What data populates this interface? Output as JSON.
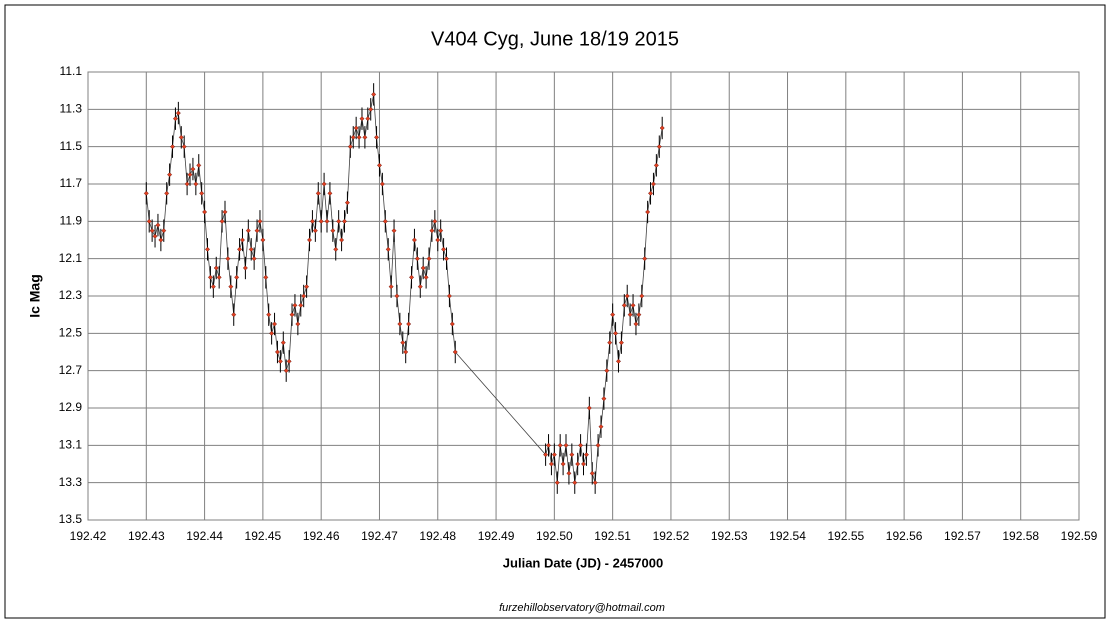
{
  "chart_data": {
    "type": "scatter",
    "title": "V404 Cyg, June 18/19 2015",
    "x_label": "Julian Date (JD) - 2457000",
    "y_label": "Ic Mag",
    "annotation": "furzehillobservatory@hotmail.com",
    "xlim": [
      192.42,
      192.59
    ],
    "xticks": [
      192.42,
      192.43,
      192.44,
      192.45,
      192.46,
      192.47,
      192.48,
      192.49,
      {
        "value": 192.5,
        "label": "192.50"
      },
      192.51,
      192.52,
      192.53,
      192.54,
      192.55,
      192.56,
      192.57,
      192.58,
      192.59
    ],
    "ylim": [
      11.1,
      13.5
    ],
    "yticks": [
      11.1,
      11.3,
      11.5,
      11.7,
      11.9,
      12.1,
      12.3,
      12.5,
      12.7,
      12.9,
      13.1,
      13.3,
      13.5
    ],
    "y_inverted": true,
    "grid": true,
    "x": [
      192.43,
      192.4305,
      192.431,
      192.4315,
      192.432,
      192.4325,
      192.433,
      192.4335,
      192.434,
      192.4345,
      192.435,
      192.4355,
      192.436,
      192.4365,
      192.437,
      192.4375,
      192.438,
      192.4385,
      192.439,
      192.4395,
      192.44,
      192.4405,
      192.441,
      192.4415,
      192.442,
      192.4425,
      192.443,
      192.4435,
      192.444,
      192.4445,
      192.445,
      192.4455,
      192.446,
      192.4465,
      192.447,
      192.4475,
      192.448,
      192.4485,
      192.449,
      192.4495,
      192.45,
      192.4505,
      192.451,
      192.4515,
      192.452,
      192.4525,
      192.453,
      192.4535,
      192.454,
      192.4545,
      192.455,
      192.4555,
      192.456,
      192.4565,
      192.457,
      192.4575,
      192.458,
      192.4585,
      192.459,
      192.4595,
      192.46,
      192.4605,
      192.461,
      192.4615,
      192.462,
      192.4625,
      192.463,
      192.4635,
      192.464,
      192.4645,
      192.465,
      192.4655,
      192.466,
      192.4665,
      192.467,
      192.4675,
      192.468,
      192.4685,
      192.469,
      192.4695,
      192.47,
      192.4705,
      192.471,
      192.4715,
      192.472,
      192.4725,
      192.473,
      192.4735,
      192.474,
      192.4745,
      192.475,
      192.4755,
      192.476,
      192.4765,
      192.477,
      192.4775,
      192.478,
      192.4785,
      192.479,
      192.4795,
      192.48,
      192.4805,
      192.481,
      192.4815,
      192.482,
      192.4825,
      192.483,
      192.4985,
      192.499,
      192.4995,
      192.5,
      192.5005,
      192.501,
      192.5015,
      192.502,
      192.5025,
      192.503,
      192.5035,
      192.504,
      192.5045,
      192.505,
      192.5055,
      192.506,
      192.5065,
      192.507,
      192.5075,
      192.508,
      192.5085,
      192.509,
      192.5095,
      192.51,
      192.5105,
      192.511,
      192.5115,
      192.512,
      192.5125,
      192.513,
      192.5135,
      192.514,
      192.5145,
      192.515,
      192.5155,
      192.516,
      192.5165,
      192.517,
      192.5175,
      192.518,
      192.5185
    ],
    "series": [
      {
        "color": "#e04020",
        "line_color": "#404040",
        "error": 0.06,
        "values": [
          11.75,
          11.9,
          11.95,
          11.98,
          11.92,
          12.0,
          11.95,
          11.75,
          11.65,
          11.5,
          11.35,
          11.32,
          11.45,
          11.5,
          11.7,
          11.65,
          11.62,
          11.7,
          11.6,
          11.75,
          11.85,
          12.05,
          12.2,
          12.25,
          12.15,
          12.2,
          11.9,
          11.85,
          12.1,
          12.25,
          12.4,
          12.2,
          12.05,
          12.0,
          12.15,
          11.95,
          12.05,
          12.1,
          11.95,
          11.9,
          12.0,
          12.2,
          12.4,
          12.5,
          12.45,
          12.6,
          12.65,
          12.55,
          12.7,
          12.65,
          12.4,
          12.35,
          12.45,
          12.35,
          12.3,
          12.25,
          12.0,
          11.9,
          11.95,
          11.75,
          11.9,
          11.7,
          11.9,
          11.75,
          11.95,
          12.05,
          11.9,
          12.0,
          11.9,
          11.8,
          11.5,
          11.45,
          11.4,
          11.45,
          11.35,
          11.45,
          11.35,
          11.3,
          11.22,
          11.45,
          11.6,
          11.7,
          11.9,
          12.05,
          12.25,
          11.95,
          12.3,
          12.45,
          12.55,
          12.6,
          12.45,
          12.2,
          12.0,
          12.1,
          12.25,
          12.15,
          12.2,
          12.1,
          11.95,
          11.9,
          12.0,
          11.95,
          12.05,
          12.1,
          12.3,
          12.45,
          12.6,
          13.15,
          13.1,
          13.2,
          13.15,
          13.3,
          13.1,
          13.2,
          13.1,
          13.25,
          13.15,
          13.3,
          13.2,
          13.1,
          13.2,
          13.15,
          12.9,
          13.25,
          13.3,
          13.1,
          13.0,
          12.85,
          12.7,
          12.55,
          12.4,
          12.5,
          12.65,
          12.55,
          12.35,
          12.3,
          12.4,
          12.35,
          12.45,
          12.4,
          12.3,
          12.1,
          11.85,
          11.75,
          11.7,
          11.6,
          11.5,
          11.4
        ]
      }
    ]
  }
}
